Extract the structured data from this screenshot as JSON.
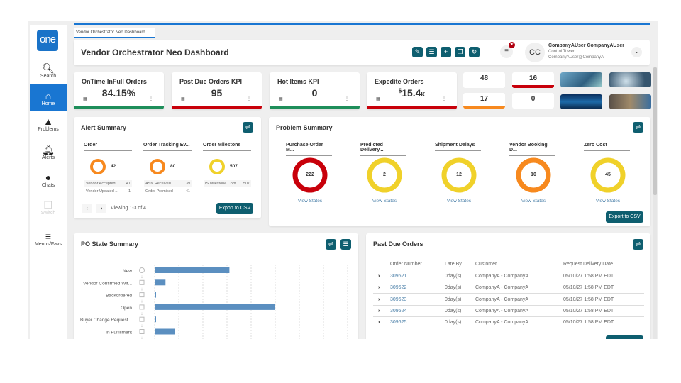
{
  "colors": {
    "brand": "#1a73c8",
    "teal": "#0e5e6f",
    "green": "#1e8e5a",
    "red": "#c8000a",
    "orange": "#f7891e",
    "yellow": "#f0d12a",
    "link": "#4a7fa8"
  },
  "sidebar": {
    "logo": "one",
    "items": [
      {
        "label": "Search",
        "icon": "search-icon"
      },
      {
        "label": "Home",
        "icon": "home-icon",
        "active": true
      },
      {
        "label": "Problems",
        "icon": "warning-icon"
      },
      {
        "label": "Alerts",
        "icon": "bell-icon"
      },
      {
        "label": "Chats",
        "icon": "chat-icon"
      },
      {
        "label": "Switch",
        "icon": "switch-icon",
        "disabled": true
      },
      {
        "label": "Menus/Favs",
        "icon": "menu-icon"
      }
    ]
  },
  "tab": "Vendor Orchestrator Neo Dashboard",
  "header": {
    "title": "Vendor Orchestrator Neo Dashboard",
    "avatar": "CC",
    "user_name": "CompanyAUser CompanyAUser",
    "role": "Control Tower",
    "email": "CompanyAUser@CompanyA"
  },
  "kpis": [
    {
      "label": "OnTime InFull Orders",
      "value": "84.15%",
      "status": "green"
    },
    {
      "label": "Past Due Orders KPI",
      "value": "95",
      "status": "red"
    },
    {
      "label": "Hot Items KPI",
      "value": "0",
      "status": "green"
    },
    {
      "label": "Expedite Orders",
      "value_prefix": "$",
      "value": "15.4",
      "value_suffix": "K",
      "status": "red"
    }
  ],
  "tiles": [
    {
      "value": "48",
      "status": "none"
    },
    {
      "value": "16",
      "status": "red"
    },
    {
      "value": "17",
      "status": "orange"
    },
    {
      "value": "0",
      "status": "none"
    }
  ],
  "alert_summary": {
    "title": "Alert Summary",
    "columns": [
      {
        "header": "Order",
        "total": "42",
        "color": "orange",
        "rows": [
          [
            "Vendor Accepted ...",
            "41"
          ],
          [
            "Vendor Updated ...",
            "1"
          ]
        ]
      },
      {
        "header": "Order Tracking Ev...",
        "total": "80",
        "color": "orange",
        "rows": [
          [
            "ASN Received",
            "39"
          ],
          [
            "Order Promised",
            "41"
          ]
        ]
      },
      {
        "header": "Order Milestone",
        "total": "507",
        "color": "yellow",
        "rows": [
          [
            "IS Milestone Com...",
            "507"
          ]
        ]
      }
    ],
    "paging": "Viewing 1-3 of 4",
    "export": "Export to CSV"
  },
  "problem_summary": {
    "title": "Problem Summary",
    "items": [
      {
        "header": "Purchase Order M...",
        "value": "222",
        "color": "red"
      },
      {
        "header": "Predicted Delivery...",
        "value": "2",
        "color": "yellow"
      },
      {
        "header": "Shipment Delays",
        "value": "12",
        "color": "yellow"
      },
      {
        "header": "Vendor Booking D...",
        "value": "10",
        "color": "orange"
      },
      {
        "header": "Zero Cost",
        "value": "45",
        "color": "yellow"
      }
    ],
    "link": "View States",
    "export": "Export to CSV"
  },
  "po_state": {
    "title": "PO State Summary",
    "chart_data": {
      "type": "bar",
      "orientation": "horizontal",
      "categories": [
        "New",
        "Vendor Confirmed Wit...",
        "Backordered",
        "Open",
        "Buyer Change Request...",
        "In Fulfillment"
      ],
      "values": [
        3.1,
        0.45,
        0.05,
        5.0,
        0.05,
        0.85
      ],
      "grid": true,
      "xlim": [
        0,
        8
      ]
    }
  },
  "past_due": {
    "title": "Past Due Orders",
    "columns": [
      "Order Number",
      "Late By",
      "Customer",
      "Request Delivery Date"
    ],
    "rows": [
      [
        "309621",
        "0day(s)",
        "CompanyA - CompanyA",
        "05/10/27 1:58 PM EDT"
      ],
      [
        "309622",
        "0day(s)",
        "CompanyA - CompanyA",
        "05/10/27 1:58 PM EDT"
      ],
      [
        "309623",
        "0day(s)",
        "CompanyA - CompanyA",
        "05/10/27 1:58 PM EDT"
      ],
      [
        "309624",
        "0day(s)",
        "CompanyA - CompanyA",
        "05/10/27 1:58 PM EDT"
      ],
      [
        "309625",
        "0day(s)",
        "CompanyA - CompanyA",
        "05/10/27 1:58 PM EDT"
      ]
    ]
  }
}
